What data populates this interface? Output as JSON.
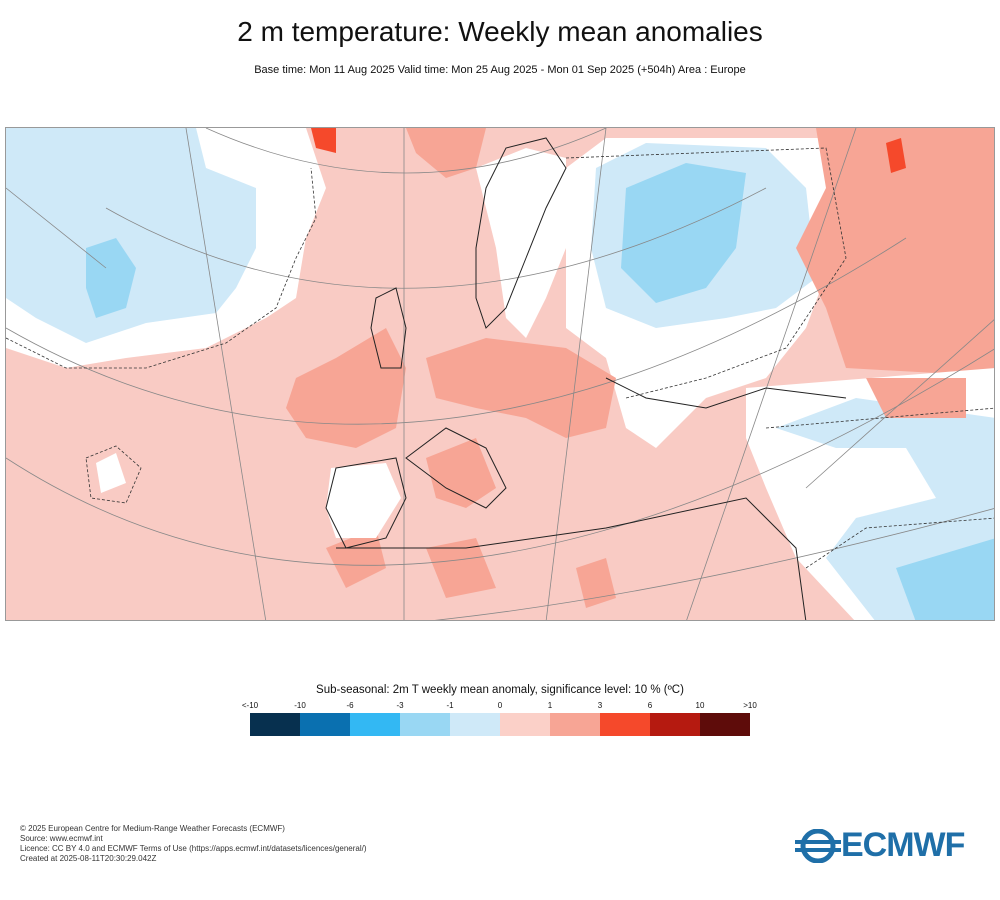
{
  "header": {
    "title": "2 m temperature: Weekly mean anomalies",
    "subtitle": "Base time: Mon 11 Aug 2025 Valid time: Mon 25 Aug 2025 - Mon 01 Sep 2025 (+504h) Area : Europe"
  },
  "map": {
    "area": "Europe",
    "base_color": "#f9cbc4"
  },
  "colorbar": {
    "title": "Sub-seasonal: 2m T weekly mean anomaly, significance level: 10 % (ºC)",
    "labels": [
      "<-10",
      "-10",
      "-6",
      "-3",
      "-1",
      "0",
      "1",
      "3",
      "6",
      "10",
      ">10"
    ],
    "colors": [
      "#07304f",
      "#0a70b0",
      "#33b8f3",
      "#99d7f3",
      "#cfe9f8",
      "#fbd0c8",
      "#f7a595",
      "#f5492b",
      "#b51a10",
      "#5e0c0a"
    ]
  },
  "footer": {
    "lines": [
      "© 2025 European Centre for Medium-Range Weather Forecasts (ECMWF)",
      "Source: www.ecmwf.int",
      "Licence: CC BY 4.0 and ECMWF Terms of Use (https://apps.ecmwf.int/datasets/licences/general/)",
      "Created at 2025-08-11T20:30:29.042Z"
    ]
  },
  "logo": {
    "text": "ECMWF"
  }
}
